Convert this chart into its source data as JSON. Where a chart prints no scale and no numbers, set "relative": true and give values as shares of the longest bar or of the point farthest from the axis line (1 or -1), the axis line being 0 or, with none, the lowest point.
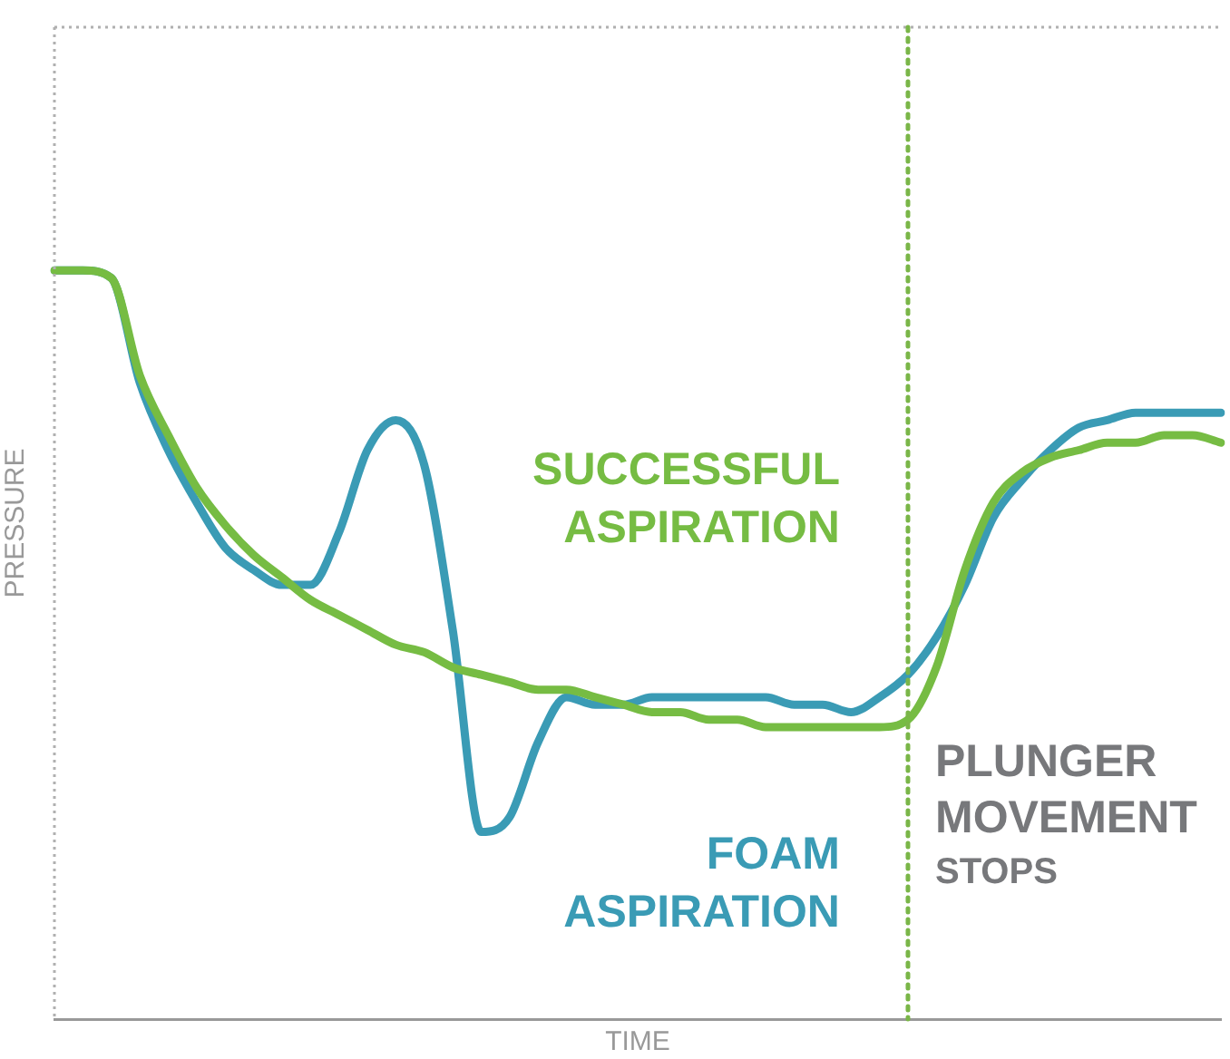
{
  "chart_data": {
    "type": "line",
    "relative": true,
    "xlabel": "TIME",
    "ylabel": "PRESSURE",
    "grid": false,
    "marker": "none",
    "categories": [
      null,
      null,
      null,
      null,
      null,
      null,
      null,
      null,
      null,
      null,
      null,
      null,
      null,
      null,
      null,
      null,
      null,
      null,
      null,
      null,
      null,
      null,
      null,
      null,
      null,
      null,
      null,
      null,
      null,
      null,
      null,
      null,
      null,
      null,
      null,
      null,
      null,
      null,
      null,
      null,
      null,
      null
    ],
    "series": [
      {
        "name": "SUCCESSFUL ASPIRATION",
        "color": "#76bc43",
        "values": [
          1.0,
          1.0,
          0.99,
          0.86,
          0.78,
          0.71,
          0.66,
          0.62,
          0.59,
          0.56,
          0.54,
          0.52,
          0.5,
          0.49,
          0.47,
          0.46,
          0.45,
          0.44,
          0.44,
          0.43,
          0.42,
          0.41,
          0.41,
          0.4,
          0.4,
          0.39,
          0.39,
          0.39,
          0.39,
          0.39,
          0.4,
          0.47,
          0.6,
          0.69,
          0.73,
          0.75,
          0.76,
          0.77,
          0.77,
          0.78,
          0.78,
          0.77
        ]
      },
      {
        "name": "FOAM ASPIRATION",
        "color": "#3a9bb5",
        "values": [
          1.0,
          1.0,
          0.99,
          0.85,
          0.76,
          0.69,
          0.63,
          0.6,
          0.58,
          0.58,
          0.65,
          0.76,
          0.8,
          0.74,
          0.52,
          0.25,
          0.27,
          0.37,
          0.43,
          0.42,
          0.42,
          0.43,
          0.43,
          0.43,
          0.43,
          0.43,
          0.42,
          0.42,
          0.41,
          0.43,
          0.46,
          0.51,
          0.58,
          0.67,
          0.72,
          0.76,
          0.79,
          0.8,
          0.81,
          0.81,
          0.81,
          0.81
        ]
      }
    ],
    "annotations": [
      "PLUNGER MOVEMENT STOPS"
    ]
  }
}
